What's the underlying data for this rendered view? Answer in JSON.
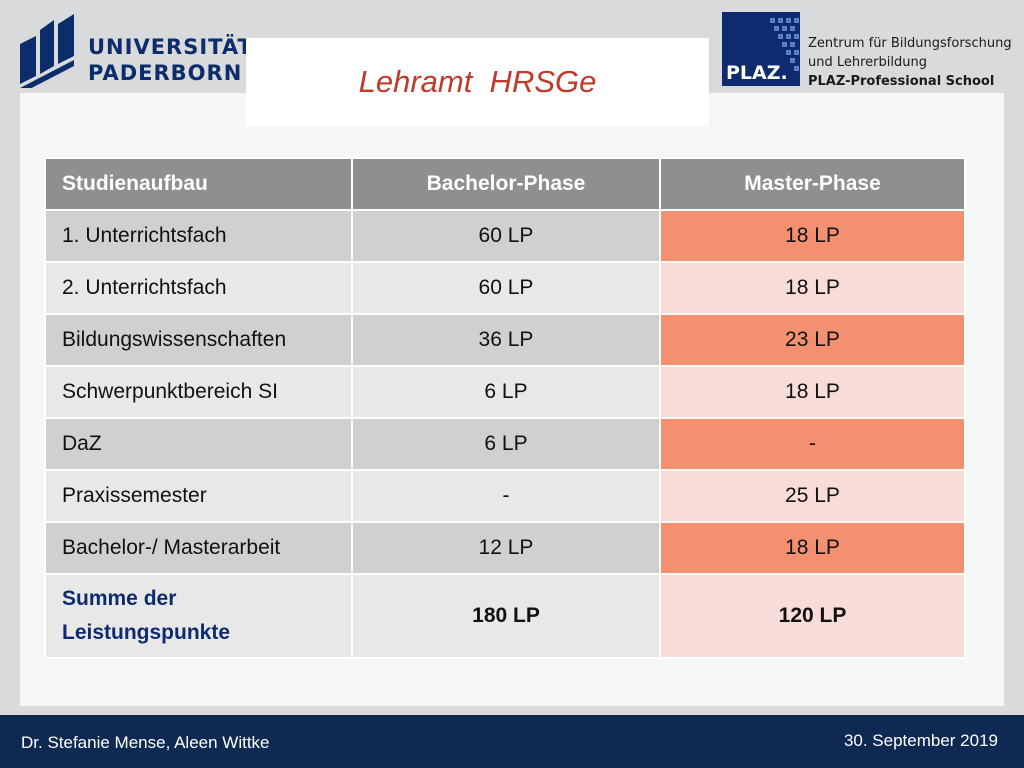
{
  "header": {
    "university_line1": "UNIVERSITÄT",
    "university_line2": "PADERBORN",
    "title": "Lehramt  HRSGe",
    "plaz_logo": "PLAZ.",
    "plaz_caption": [
      "Zentrum für Bildungsforschung",
      "und Lehrerbildung",
      "PLAZ-Professional School"
    ]
  },
  "table": {
    "headers": [
      "Studienaufbau",
      "Bachelor-Phase",
      "Master-Phase"
    ],
    "rows": [
      [
        "1. Unterrichtsfach",
        "60 LP",
        "18 LP"
      ],
      [
        "2. Unterrichtsfach",
        "60 LP",
        "18 LP"
      ],
      [
        "Bildungswissenschaften",
        "36 LP",
        "23 LP"
      ],
      [
        "Schwerpunktbereich SI",
        "6 LP",
        "18 LP"
      ],
      [
        "DaZ",
        "6 LP",
        "-"
      ],
      [
        "Praxissemester",
        "-",
        "25 LP"
      ],
      [
        "Bachelor-/ Masterarbeit",
        "12 LP",
        "18 LP"
      ]
    ],
    "sum": {
      "label_line1": "Summe der",
      "label_line2": "Leistungspunkte",
      "bachelor": "180 LP",
      "master": "120 LP"
    }
  },
  "footer": {
    "authors": "Dr. Stefanie Mense, Aleen Wittke",
    "date": "30. September 2019"
  },
  "colors": {
    "brand_navy": "#0f2a52",
    "title_red": "#c0392b",
    "highlight_salmon": "#f3906f",
    "light_salmon": "#f8dcd7"
  }
}
